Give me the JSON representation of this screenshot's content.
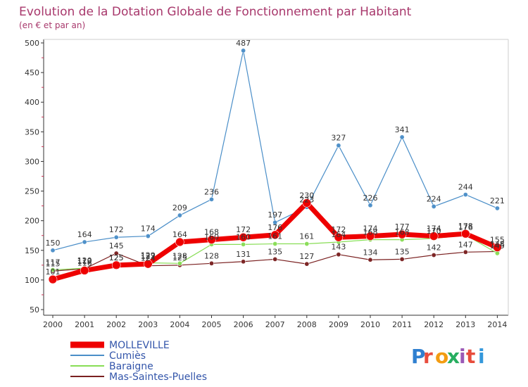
{
  "chart_data": {
    "type": "line",
    "title": "Evolution de la Dotation Globale de Fonctionnement par Habitant",
    "subtitle": "(en € et par an)",
    "x": [
      "2000",
      "2001",
      "2002",
      "2003",
      "2004",
      "2005",
      "2006",
      "2007",
      "2008",
      "2009",
      "2010",
      "2011",
      "2012",
      "2013",
      "2014"
    ],
    "ylim": [
      50,
      500
    ],
    "yticks": [
      50,
      100,
      150,
      200,
      250,
      300,
      350,
      400,
      450,
      500
    ],
    "grid": false,
    "legend_position": "bottom-left",
    "series": [
      {
        "name": "MOLLEVILLE",
        "color": "#ee0000",
        "values": [
          101,
          116,
          125,
          127,
          164,
          168,
          172,
          176,
          230,
          172,
          174,
          177,
          174,
          178,
          155
        ]
      },
      {
        "name": "Cumiès",
        "color": "#4a8ec8",
        "values": [
          150,
          164,
          172,
          174,
          209,
          236,
          487,
          197,
          223,
          327,
          226,
          341,
          224,
          244,
          221
        ]
      },
      {
        "name": "Baraigne",
        "color": "#88dd55",
        "values": [
          117,
          120,
          125,
          129,
          128,
          160,
          160,
          161,
          161,
          164,
          168,
          168,
          170,
          176,
          145
        ]
      },
      {
        "name": "Mas-Saintes-Puelles",
        "color": "#7a2020",
        "values": [
          115,
          119,
          145,
          124,
          125,
          128,
          131,
          135,
          127,
          143,
          134,
          135,
          142,
          147,
          148
        ]
      }
    ]
  },
  "logo": {
    "text": "Proxiti"
  }
}
